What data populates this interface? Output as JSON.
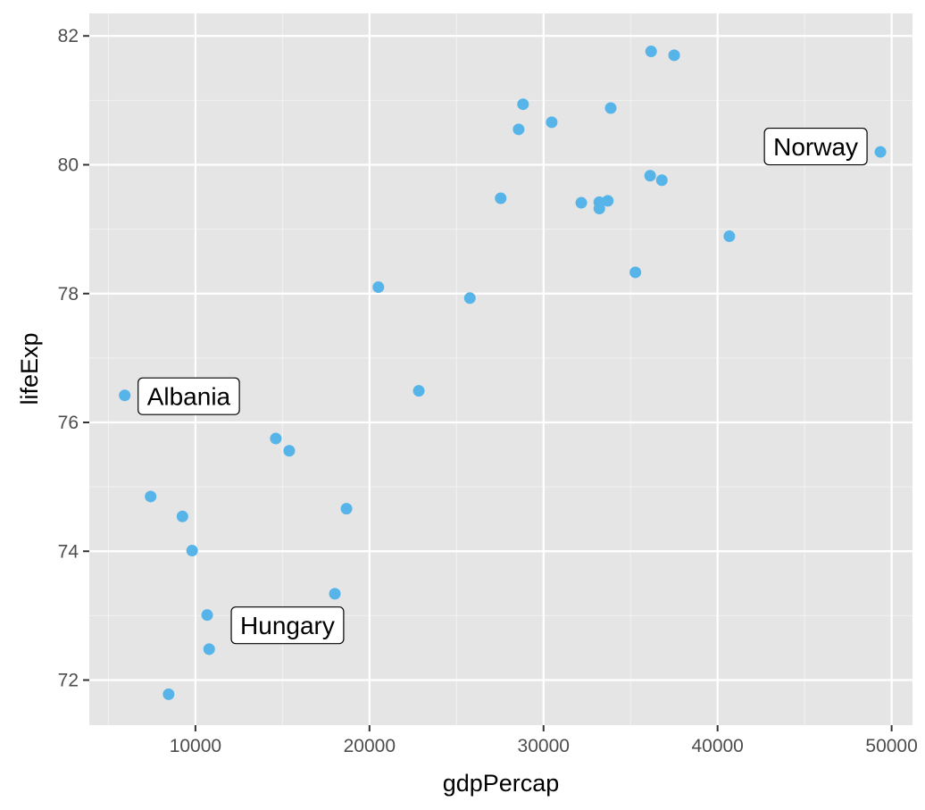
{
  "chart_data": {
    "type": "scatter",
    "xlabel": "gdpPercap",
    "ylabel": "lifeExp",
    "xlim": [
      3900,
      51200
    ],
    "ylim": [
      71.3,
      82.35
    ],
    "x_ticks": [
      10000,
      20000,
      30000,
      40000,
      50000
    ],
    "x_tick_labels": [
      "10000",
      "20000",
      "30000",
      "40000",
      "50000"
    ],
    "y_ticks": [
      72,
      74,
      76,
      78,
      80,
      82
    ],
    "y_tick_labels": [
      "72",
      "74",
      "76",
      "78",
      "80",
      "82"
    ],
    "grid": true,
    "colors": {
      "panel_background": "#e5e5e5",
      "grid_major": "#ffffff",
      "grid_minor": "#f2f2f2",
      "point": "#56b4e9",
      "tick": "#333333"
    },
    "points": [
      {
        "x": 5937,
        "y": 76.42
      },
      {
        "x": 7425,
        "y": 74.85
      },
      {
        "x": 9253,
        "y": 74.54
      },
      {
        "x": 9808,
        "y": 74.01
      },
      {
        "x": 10674,
        "y": 73.01
      },
      {
        "x": 10787,
        "y": 72.48
      },
      {
        "x": 8458,
        "y": 71.78
      },
      {
        "x": 14617,
        "y": 75.75
      },
      {
        "x": 15390,
        "y": 75.56
      },
      {
        "x": 18678,
        "y": 74.66
      },
      {
        "x": 18009,
        "y": 73.34
      },
      {
        "x": 20510,
        "y": 78.1
      },
      {
        "x": 22833,
        "y": 76.49
      },
      {
        "x": 25768,
        "y": 77.93
      },
      {
        "x": 27538,
        "y": 79.48
      },
      {
        "x": 28570,
        "y": 80.55
      },
      {
        "x": 28822,
        "y": 80.94
      },
      {
        "x": 30470,
        "y": 80.66
      },
      {
        "x": 32170,
        "y": 79.41
      },
      {
        "x": 33203,
        "y": 79.42
      },
      {
        "x": 33207,
        "y": 79.32
      },
      {
        "x": 33692,
        "y": 79.44
      },
      {
        "x": 33860,
        "y": 80.88
      },
      {
        "x": 35278,
        "y": 78.33
      },
      {
        "x": 36126,
        "y": 79.83
      },
      {
        "x": 36181,
        "y": 81.76
      },
      {
        "x": 36798,
        "y": 79.76
      },
      {
        "x": 37506,
        "y": 81.7
      },
      {
        "x": 40676,
        "y": 78.89
      },
      {
        "x": 49357,
        "y": 80.2
      }
    ],
    "annotations": [
      {
        "label": "Albania",
        "x": 5937,
        "y": 76.42,
        "side": "right"
      },
      {
        "label": "Hungary",
        "x": 10674,
        "y": 73.01,
        "side": "right-below"
      },
      {
        "label": "Norway",
        "x": 49357,
        "y": 80.2,
        "side": "left"
      }
    ]
  }
}
